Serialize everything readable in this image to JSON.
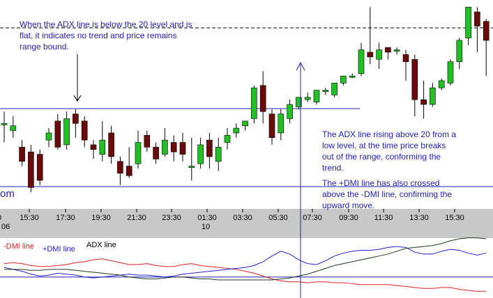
{
  "colors": {
    "bull": "#22c022",
    "bear": "#6b0a0a",
    "wick": "#000000",
    "annotation": "#1f1fb4",
    "axis_band": "#c8c8c8",
    "dmi_minus": "#e02020",
    "dmi_plus": "#1f1fd8",
    "adx": "#1e3a1e"
  },
  "annotations": {
    "top_left": [
      "When the ADX line is below the 20 level and is",
      "flat, it indicates no trend and price remains",
      "range bound."
    ],
    "right_adx": [
      "The ADX line rising above 20 from a",
      "low level, at the time price breaks",
      "out of the range, conforming the",
      "trend."
    ],
    "right_dmi": [
      "The +DMI line has also crossed",
      "above the -DMI line, confirming the",
      "upward move."
    ]
  },
  "chart_data": [
    {
      "type": "candlestick",
      "time_ticks": [
        "0",
        "15:30",
        "17:30",
        "19:30",
        "21:30",
        "23:30",
        "01:30",
        "03:30",
        "05:30",
        "07:30",
        "09:30",
        "11:30",
        "13:30",
        "15:30"
      ],
      "date_labels": [
        "06",
        "10"
      ],
      "edge_label": "om",
      "candles": [
        [
          30,
          30,
          22,
          35
        ],
        [
          27,
          29,
          24,
          33
        ],
        [
          20,
          14,
          12,
          23
        ],
        [
          18,
          3,
          1,
          21
        ],
        [
          17,
          6,
          4,
          19
        ],
        [
          23,
          26,
          20,
          28
        ],
        [
          31,
          20,
          19,
          34
        ],
        [
          21,
          32,
          19,
          35
        ],
        [
          34,
          30,
          24,
          36
        ],
        [
          31,
          23,
          20,
          33
        ],
        [
          21,
          19,
          15,
          23
        ],
        [
          17,
          23,
          14,
          31
        ],
        [
          26,
          16,
          13,
          29
        ],
        [
          14,
          9,
          4,
          16
        ],
        [
          12,
          8,
          7,
          20
        ],
        [
          13,
          22,
          11,
          27
        ],
        [
          25,
          20,
          18,
          27
        ],
        [
          20,
          15,
          13,
          22
        ],
        [
          17,
          23,
          16,
          28
        ],
        [
          22,
          18,
          14,
          25
        ],
        [
          22,
          17,
          14,
          26
        ],
        [
          12,
          12,
          6,
          24
        ],
        [
          13,
          21,
          11,
          24
        ],
        [
          23,
          16,
          11,
          26
        ],
        [
          14,
          20,
          10,
          24
        ],
        [
          22,
          25,
          19,
          28
        ],
        [
          26,
          28,
          24,
          30
        ],
        [
          29,
          31,
          27,
          31
        ],
        [
          32,
          45,
          30,
          46
        ],
        [
          46,
          35,
          30,
          52
        ],
        [
          34,
          24,
          21,
          36
        ],
        [
          26,
          34,
          23,
          36
        ],
        [
          32,
          38,
          30,
          40
        ],
        [
          37,
          41,
          36,
          41
        ],
        [
          40,
          41,
          39,
          43
        ],
        [
          39,
          44,
          38,
          44
        ],
        [
          44,
          44,
          42,
          45
        ],
        [
          42,
          47,
          41,
          47
        ],
        [
          47,
          50,
          46,
          50
        ],
        [
          50,
          50,
          49,
          51
        ],
        [
          51,
          61,
          50,
          64
        ],
        [
          60,
          58,
          55,
          79
        ],
        [
          57,
          61,
          53,
          64
        ],
        [
          62,
          60,
          57,
          62
        ],
        [
          61,
          61,
          59,
          62
        ],
        [
          59,
          56,
          48,
          61
        ],
        [
          57,
          40,
          33,
          59
        ],
        [
          40,
          38,
          32,
          48
        ],
        [
          38,
          45,
          37,
          47
        ],
        [
          45,
          48,
          44,
          49
        ],
        [
          47,
          56,
          46,
          57
        ],
        [
          56,
          65,
          53,
          66
        ],
        [
          66,
          79,
          63,
          79
        ],
        [
          77,
          71,
          60,
          79
        ],
        [
          73,
          65,
          50,
          74
        ]
      ]
    },
    {
      "type": "line",
      "legend_labels": [
        "-DMI line",
        "+DMI line",
        "ADX line"
      ],
      "series": [
        {
          "name": "-DMI line",
          "values": [
            14,
            15,
            14,
            12,
            11,
            11,
            12,
            13,
            15,
            16,
            18,
            19,
            17,
            15,
            13,
            13,
            14,
            12,
            11,
            11,
            13,
            14,
            12,
            11,
            10,
            9,
            8,
            6,
            4,
            1,
            -2,
            -4,
            -5,
            -5,
            -6,
            -5,
            -5,
            -6,
            -6,
            -7,
            -8,
            -8,
            -8,
            -8,
            -9,
            -10,
            -11,
            -12,
            -12,
            -11,
            -11,
            -13,
            -14,
            -15,
            -15
          ]
        },
        {
          "name": "+DMI line",
          "values": [
            10,
            8,
            6,
            3,
            1,
            2,
            4,
            3,
            2,
            0,
            -1,
            0,
            1,
            2,
            3,
            2,
            2,
            1,
            0,
            1,
            3,
            4,
            5,
            6,
            7,
            8,
            9,
            10,
            12,
            16,
            22,
            27,
            24,
            18,
            14,
            13,
            17,
            22,
            25,
            27,
            28,
            28,
            29,
            31,
            32,
            31,
            26,
            24,
            24,
            27,
            29,
            28,
            25,
            23,
            25
          ]
        },
        {
          "name": "ADX line",
          "values": [
            8,
            8,
            8,
            7,
            7,
            8,
            8,
            8,
            7,
            6,
            5,
            4,
            3,
            2,
            0,
            -1,
            -2,
            -2,
            -1,
            0,
            0,
            -1,
            -2,
            -2,
            -3,
            -3,
            -3,
            -3,
            -3,
            -3,
            -3,
            -2,
            -1,
            1,
            3,
            6,
            9,
            12,
            14,
            16,
            18,
            20,
            22,
            24,
            27,
            30,
            31,
            32,
            33,
            35,
            38,
            40,
            41,
            41,
            40
          ]
        }
      ],
      "reference_level": 0
    }
  ]
}
